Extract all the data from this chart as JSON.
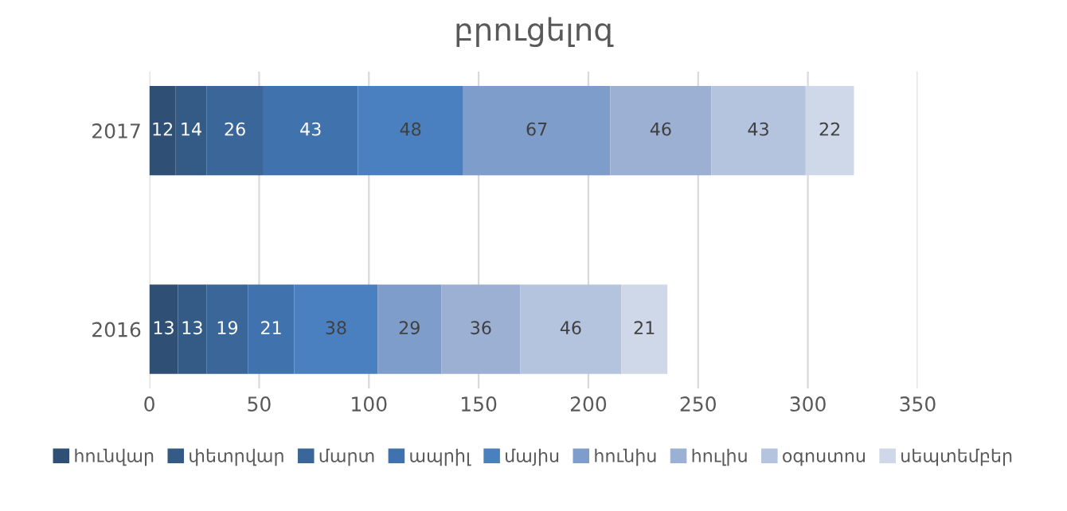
{
  "chart_data": {
    "type": "bar",
    "orientation": "horizontal",
    "stacked": true,
    "title": "բրուցելոզ",
    "categories": [
      "2017",
      "2016"
    ],
    "series": [
      {
        "name": "հունվար",
        "color": "#2f4f75",
        "values": [
          12,
          13
        ]
      },
      {
        "name": "փետրվար",
        "color": "#345a86",
        "values": [
          14,
          13
        ]
      },
      {
        "name": "մարտ",
        "color": "#3a6699",
        "values": [
          26,
          19
        ]
      },
      {
        "name": "ապրիլ",
        "color": "#4072ad",
        "values": [
          43,
          21
        ]
      },
      {
        "name": "մայիս",
        "color": "#4a80c0",
        "values": [
          48,
          38
        ]
      },
      {
        "name": "հունիս",
        "color": "#7f9dcb",
        "values": [
          67,
          29
        ]
      },
      {
        "name": "հուլիս",
        "color": "#9bb0d3",
        "values": [
          46,
          36
        ]
      },
      {
        "name": "օգոստոս",
        "color": "#b4c3de",
        "values": [
          43,
          46
        ]
      },
      {
        "name": "սեպտեմբեր",
        "color": "#cfd8e8",
        "values": [
          22,
          21
        ]
      }
    ],
    "xlim": [
      0,
      350
    ],
    "xticks": [
      0,
      50,
      100,
      150,
      200,
      250,
      300,
      350
    ],
    "grid": "x",
    "legend": "bottom",
    "data_labels": true
  }
}
